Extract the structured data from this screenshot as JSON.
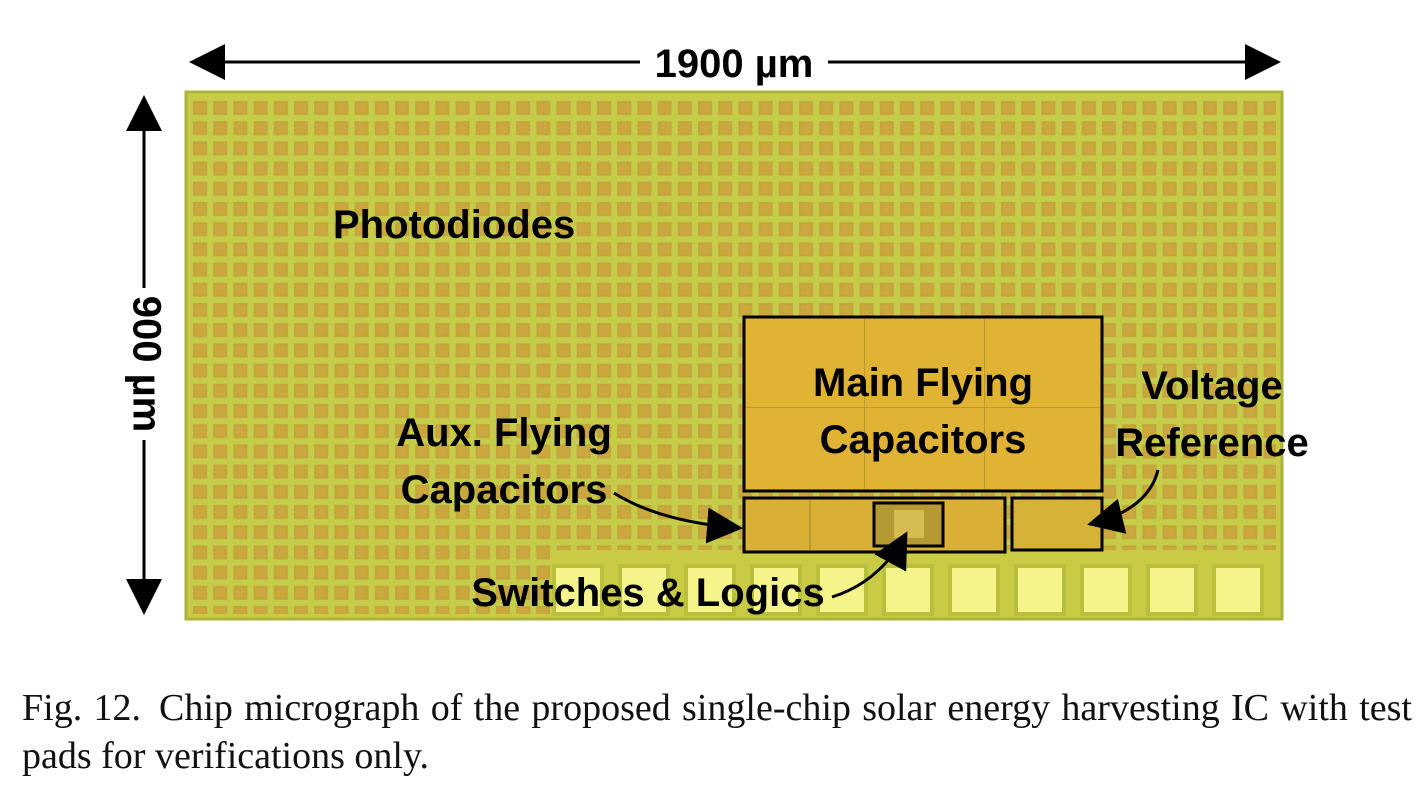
{
  "figure": {
    "width_label": "1900 µm",
    "height_label": "900 µm",
    "regions": {
      "photodiodes": "Photodiodes",
      "main_cap_line1": "Main Flying",
      "main_cap_line2": "Capacitors",
      "aux_cap_line1": "Aux. Flying",
      "aux_cap_line2": "Capacitors",
      "vref_line1": "Voltage",
      "vref_line2": "Reference",
      "switches": "Switches & Logics"
    },
    "colors": {
      "die": "#c9cb45",
      "photodiode_cell": "#c6a93c",
      "capacitor": "#e2b733",
      "pad": "#f5f48a",
      "outline": "#000000"
    }
  },
  "caption": {
    "label": "Fig. 12.",
    "text": "Chip micrograph of the proposed single-chip solar energy harvesting IC with test pads for verifications only."
  }
}
